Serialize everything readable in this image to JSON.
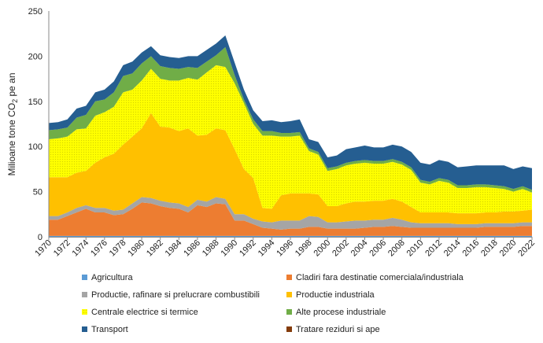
{
  "chart_data": {
    "type": "area",
    "stacked": true,
    "title": "",
    "xlabel": "",
    "ylabel": "Milioane tone CO",
    "ylabel_sub": "2",
    "ylabel_suffix": " pe an",
    "ylim": [
      0,
      250
    ],
    "y_ticks": [
      "0",
      "50",
      "100",
      "150",
      "200",
      "250"
    ],
    "x_tick_labels": [
      "1970",
      "1972",
      "1974",
      "1976",
      "1978",
      "1980",
      "1982",
      "1984",
      "1986",
      "1988",
      "1990",
      "1992",
      "1994",
      "1996",
      "1998",
      "2000",
      "2002",
      "2004",
      "2006",
      "2008",
      "2010",
      "2012",
      "2014",
      "2016",
      "2018",
      "2020",
      "2022"
    ],
    "grid": false,
    "legend_position": "bottom",
    "x": [
      1970,
      1971,
      1972,
      1973,
      1974,
      1975,
      1976,
      1977,
      1978,
      1979,
      1980,
      1981,
      1982,
      1983,
      1984,
      1985,
      1986,
      1987,
      1988,
      1989,
      1990,
      1991,
      1992,
      1993,
      1994,
      1995,
      1996,
      1997,
      1998,
      1999,
      2000,
      2001,
      2002,
      2003,
      2004,
      2005,
      2006,
      2007,
      2008,
      2009,
      2010,
      2011,
      2012,
      2013,
      2014,
      2015,
      2016,
      2017,
      2018,
      2019,
      2020,
      2021,
      2022
    ],
    "series": [
      {
        "name": "Agricultura",
        "color": "#5b9bd5",
        "hatched": false,
        "values": [
          1,
          1,
          1,
          1,
          1,
          1,
          1,
          1,
          1,
          1,
          1,
          1,
          1,
          1,
          1,
          1,
          1,
          1,
          1,
          1,
          1,
          1,
          1,
          1,
          1,
          1,
          1,
          1,
          1,
          1,
          1,
          1,
          1,
          1,
          1,
          1,
          1,
          1,
          1,
          1,
          1,
          1,
          1,
          1,
          1,
          1,
          1,
          1,
          1,
          1,
          1,
          1,
          1
        ]
      },
      {
        "name": "Cladiri fara destinatie comerciala/industriala",
        "color": "#ed7d31",
        "hatched": false,
        "values": [
          18,
          18,
          22,
          26,
          30,
          26,
          26,
          23,
          24,
          30,
          37,
          36,
          33,
          31,
          30,
          26,
          34,
          32,
          36,
          35,
          17,
          17,
          13,
          9,
          8,
          7,
          8,
          8,
          10,
          10,
          8,
          8,
          8,
          8,
          9,
          10,
          10,
          11,
          10,
          9,
          9,
          9,
          9,
          9,
          9,
          9,
          9,
          10,
          10,
          10,
          10,
          11,
          11
        ]
      },
      {
        "name": "Productie, rafinare si prelucrare combustibili",
        "color": "#a5a5a5",
        "hatched": false,
        "values": [
          4,
          4,
          4,
          5,
          4,
          5,
          5,
          5,
          5,
          6,
          6,
          6,
          6,
          6,
          6,
          6,
          6,
          6,
          7,
          6,
          7,
          7,
          6,
          7,
          7,
          10,
          9,
          9,
          12,
          11,
          7,
          7,
          8,
          9,
          8,
          8,
          8,
          9,
          8,
          6,
          5,
          5,
          5,
          5,
          4,
          4,
          4,
          4,
          4,
          4,
          4,
          4,
          4
        ]
      },
      {
        "name": "Productie industriala",
        "color": "#ffc000",
        "hatched": false,
        "values": [
          43,
          43,
          39,
          39,
          38,
          50,
          56,
          63,
          72,
          74,
          76,
          94,
          82,
          83,
          80,
          87,
          71,
          74,
          76,
          76,
          72,
          50,
          45,
          15,
          15,
          28,
          30,
          30,
          25,
          25,
          18,
          18,
          20,
          21,
          21,
          21,
          21,
          21,
          20,
          17,
          12,
          12,
          12,
          12,
          12,
          12,
          12,
          12,
          12,
          13,
          13,
          13,
          14
        ]
      },
      {
        "name": "Centrale electrice si termice",
        "color": "#ffff00",
        "hatched": true,
        "values": [
          42,
          43,
          45,
          48,
          47,
          52,
          50,
          52,
          58,
          52,
          53,
          49,
          53,
          52,
          56,
          56,
          62,
          69,
          70,
          70,
          73,
          73,
          60,
          80,
          81,
          65,
          63,
          64,
          47,
          44,
          39,
          41,
          42,
          42,
          43,
          41,
          41,
          41,
          41,
          41,
          33,
          31,
          35,
          33,
          28,
          28,
          29,
          28,
          27,
          25,
          22,
          24,
          19
        ]
      },
      {
        "name": "Alte procese industriale",
        "color": "#70ad47",
        "hatched": false,
        "values": [
          10,
          10,
          10,
          13,
          15,
          16,
          14,
          16,
          18,
          18,
          19,
          14,
          14,
          14,
          13,
          12,
          13,
          12,
          11,
          22,
          9,
          4,
          5,
          5,
          5,
          4,
          4,
          4,
          3,
          3,
          3,
          3,
          3,
          3,
          3,
          3,
          3,
          3,
          3,
          3,
          3,
          3,
          3,
          3,
          3,
          3,
          3,
          3,
          3,
          3,
          3,
          3,
          3
        ]
      },
      {
        "name": "Transport",
        "color": "#255e91",
        "hatched": false,
        "values": [
          8,
          8,
          9,
          10,
          10,
          10,
          11,
          12,
          12,
          13,
          12,
          11,
          12,
          12,
          12,
          12,
          13,
          13,
          13,
          13,
          14,
          11,
          10,
          11,
          12,
          12,
          13,
          14,
          10,
          11,
          12,
          12,
          15,
          15,
          16,
          15,
          15,
          16,
          17,
          17,
          19,
          19,
          20,
          20,
          20,
          21,
          21,
          21,
          22,
          23,
          22,
          22,
          24
        ]
      },
      {
        "name": "Tratare reziduri si ape",
        "color": "#843c0c",
        "hatched": false,
        "values": [
          0,
          0,
          0,
          0,
          0,
          0,
          0,
          0,
          0,
          0,
          0,
          0,
          0,
          0,
          0,
          0,
          0,
          0,
          0,
          0,
          0,
          0,
          0,
          0,
          0,
          0,
          0,
          0,
          0,
          0,
          0,
          0,
          0,
          0,
          0,
          0,
          0,
          0,
          0,
          0,
          0,
          0,
          0,
          0,
          0,
          0,
          0,
          0,
          0,
          0,
          0,
          0,
          0
        ]
      }
    ]
  }
}
